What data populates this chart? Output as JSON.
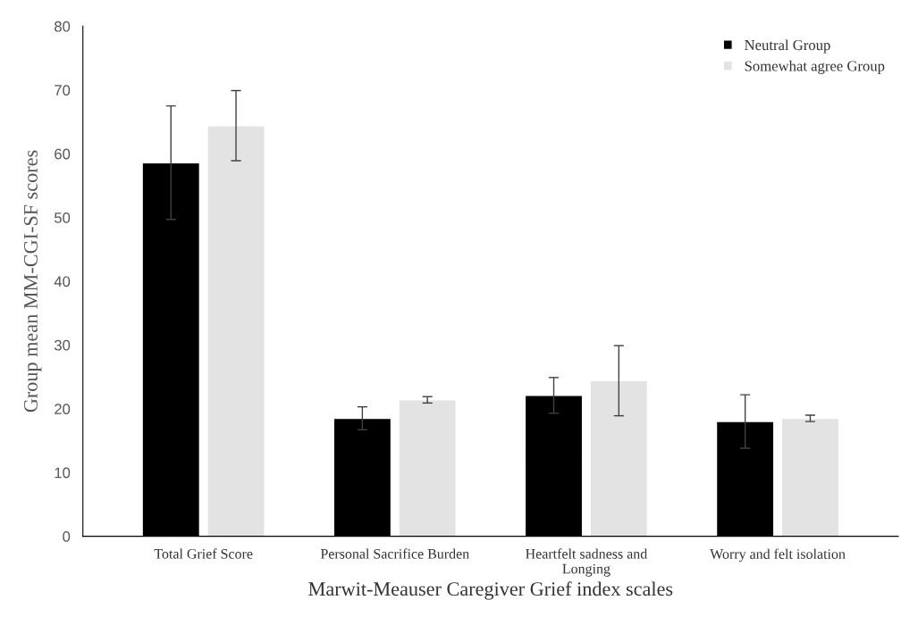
{
  "chart_data": {
    "type": "bar",
    "categories": [
      "Total Grief Score",
      "Personal Sacrifice Burden",
      "Heartfelt sadness and\nLonging",
      "Worry and felt isolation"
    ],
    "series": [
      {
        "name": "Neutral Group",
        "color": "#000000",
        "values": [
          58.6,
          18.5,
          22.1,
          18.0
        ],
        "errors": [
          8.9,
          1.8,
          2.8,
          4.2
        ]
      },
      {
        "name": "Somewhat agree Group",
        "color": "#e3e3e3",
        "values": [
          64.4,
          21.4,
          24.4,
          18.5
        ],
        "errors": [
          5.5,
          0.5,
          5.5,
          0.5
        ]
      }
    ],
    "xlabel": "Marwit-Meauser Caregiver Grief index scales",
    "ylabel": "Group mean MM-CGI-SF scores",
    "ylim": [
      0,
      80
    ],
    "yticks": [
      0,
      10,
      20,
      30,
      40,
      50,
      60,
      70,
      80
    ],
    "grid": false,
    "legend": "top right"
  }
}
